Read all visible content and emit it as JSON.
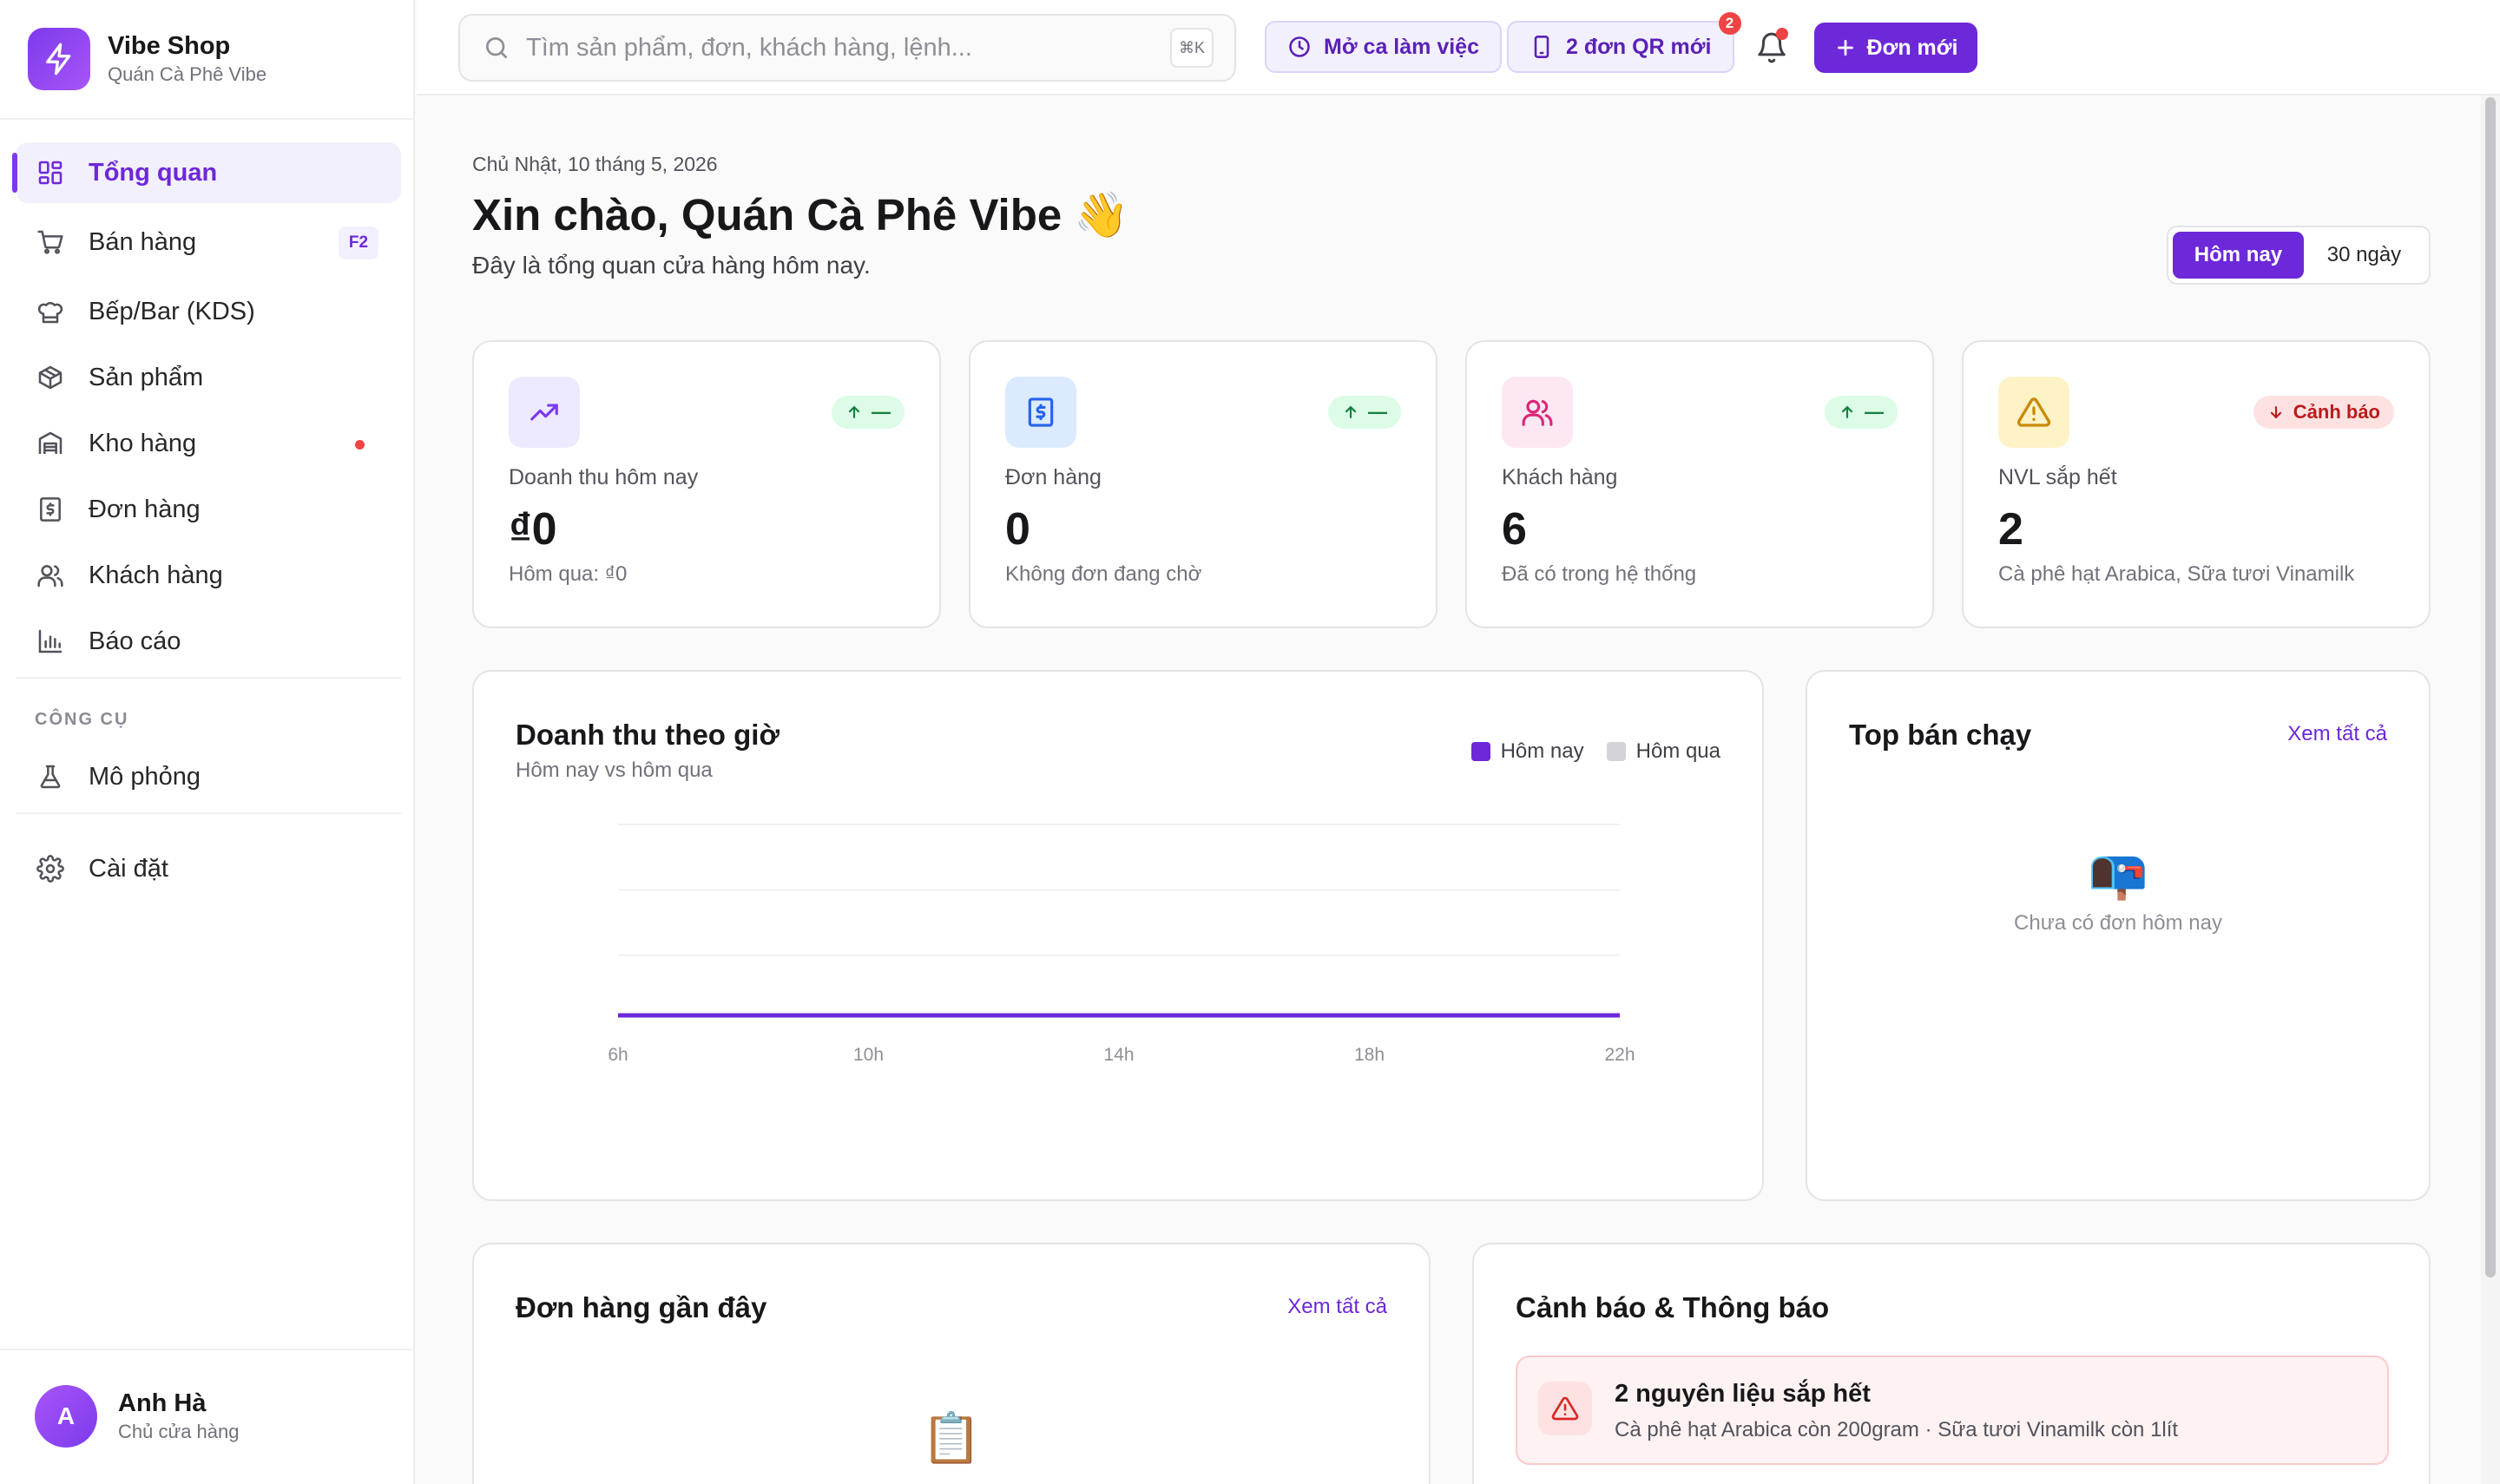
{
  "brand": {
    "name": "Vibe Shop",
    "store": "Quán Cà Phê Vibe"
  },
  "nav": {
    "items": [
      {
        "label": "Tổng quan",
        "icon": "grid-icon",
        "active": true
      },
      {
        "label": "Bán hàng",
        "icon": "cart-icon",
        "shortcut": "F2"
      },
      {
        "label": "Bếp/Bar (KDS)",
        "icon": "chef-hat-icon"
      },
      {
        "label": "Sản phẩm",
        "icon": "box-icon"
      },
      {
        "label": "Kho hàng",
        "icon": "warehouse-icon",
        "alert_dot": true
      },
      {
        "label": "Đơn hàng",
        "icon": "receipt-icon"
      },
      {
        "label": "Khách hàng",
        "icon": "users-icon"
      },
      {
        "label": "Báo cáo",
        "icon": "bar-chart-icon"
      }
    ],
    "tools_label": "CÔNG CỤ",
    "tools": [
      {
        "label": "Mô phỏng",
        "icon": "flask-icon"
      }
    ],
    "settings": {
      "label": "Cài đặt",
      "icon": "gear-icon"
    }
  },
  "user": {
    "initial": "A",
    "name": "Anh Hà",
    "role": "Chủ cửa hàng"
  },
  "topbar": {
    "search_placeholder": "Tìm sản phẩm, đơn, khách hàng, lệnh...",
    "search_shortcut": "⌘K",
    "shift_button": "Mở ca làm việc",
    "qr_button": "2 đơn QR mới",
    "qr_badge": "2",
    "new_order_button": "Đơn mới"
  },
  "header": {
    "date": "Chủ Nhật, 10 tháng 5, 2026",
    "greeting": "Xin chào, Quán Cà Phê Vibe 👋",
    "subtitle": "Đây là tổng quan cửa hàng hôm nay.",
    "range_options": [
      "Hôm nay",
      "30 ngày"
    ],
    "range_selected": "Hôm nay"
  },
  "stats": [
    {
      "label": "Doanh thu hôm nay",
      "value": "₫0",
      "note": "Hôm qua: ₫0",
      "trend": "—",
      "trend_dir": "up",
      "icon": "trending-up-icon",
      "color": "#7c3aed",
      "bg": "#ede9fe"
    },
    {
      "label": "Đơn hàng",
      "value": "0",
      "note": "Không đơn đang chờ",
      "trend": "—",
      "trend_dir": "up",
      "icon": "receipt-dollar-icon",
      "color": "#2563eb",
      "bg": "#dbeafe"
    },
    {
      "label": "Khách hàng",
      "value": "6",
      "note": "Đã có trong hệ thống",
      "trend": "—",
      "trend_dir": "up",
      "icon": "users-icon",
      "color": "#db2777",
      "bg": "#fce7f3"
    },
    {
      "label": "NVL sắp hết",
      "value": "2",
      "note": "Cà phê hạt Arabica, Sữa tươi Vinamilk",
      "trend": "Cảnh báo",
      "trend_dir": "down",
      "icon": "warning-icon",
      "color": "#ca8a04",
      "bg": "#fef3c7"
    }
  ],
  "revenue_chart": {
    "title": "Doanh thu theo giờ",
    "subtitle": "Hôm nay vs hôm qua",
    "legend": [
      {
        "name": "Hôm nay",
        "color": "#6d28d9"
      },
      {
        "name": "Hôm qua",
        "color": "#d4d4d8"
      }
    ]
  },
  "chart_data": {
    "type": "line",
    "title": "Doanh thu theo giờ",
    "subtitle": "Hôm nay vs hôm qua",
    "x": [
      "6h",
      "7h",
      "8h",
      "9h",
      "10h",
      "11h",
      "12h",
      "13h",
      "14h",
      "15h",
      "16h",
      "17h",
      "18h",
      "19h",
      "20h",
      "21h",
      "22h"
    ],
    "x_ticks": [
      "6h",
      "10h",
      "14h",
      "18h",
      "22h"
    ],
    "series": [
      {
        "name": "Hôm nay",
        "color": "#6d28d9",
        "values": [
          0,
          0,
          0,
          0,
          0,
          0,
          0,
          0,
          0,
          0,
          0,
          0,
          0,
          0,
          0,
          0,
          0
        ]
      },
      {
        "name": "Hôm qua",
        "color": "#d4d4d8",
        "values": [
          0,
          0,
          0,
          0,
          0,
          0,
          0,
          0,
          0,
          0,
          0,
          0,
          0,
          0,
          0,
          0,
          0
        ]
      }
    ],
    "grid": true,
    "legend_position": "top-right"
  },
  "top_sellers": {
    "title": "Top bán chạy",
    "see_all": "Xem tất cả",
    "empty_icon": "📭",
    "empty_text": "Chưa có đơn hôm nay"
  },
  "recent_orders": {
    "title": "Đơn hàng gần đây",
    "see_all": "Xem tất cả",
    "empty_icon": "📋"
  },
  "alerts": {
    "title": "Cảnh báo & Thông báo",
    "items": [
      {
        "title": "2 nguyên liệu sắp hết",
        "desc": "Cà phê hạt Arabica còn 200gram · Sữa tươi Vinamilk còn 1lít",
        "icon": "warning-icon"
      }
    ]
  }
}
